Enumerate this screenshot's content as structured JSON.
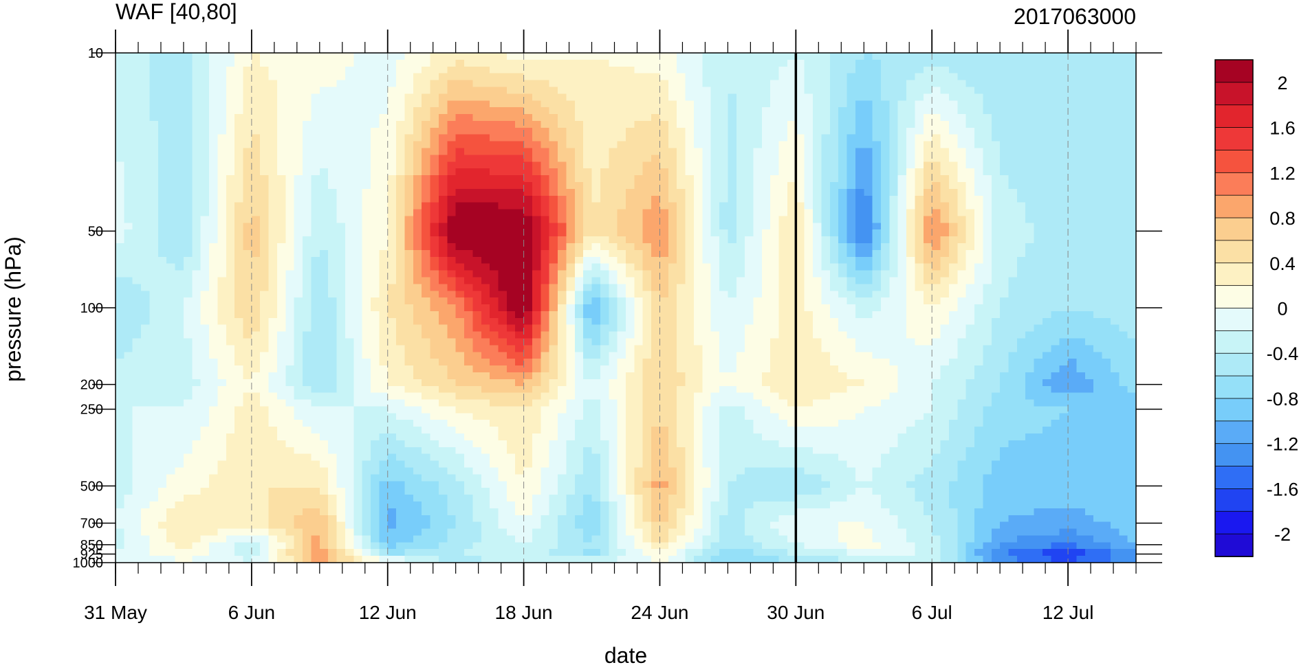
{
  "chart_data": {
    "type": "heatmap",
    "title_left": "WAF [40,80]",
    "title_right": "2017063000",
    "xlabel": "date",
    "ylabel": "pressure (hPa)",
    "x_ticks": [
      {
        "date": "2017-05-31",
        "label": "31 May"
      },
      {
        "date": "2017-06-06",
        "label": "6 Jun"
      },
      {
        "date": "2017-06-12",
        "label": "12 Jun"
      },
      {
        "date": "2017-06-18",
        "label": "18 Jun"
      },
      {
        "date": "2017-06-24",
        "label": "24 Jun"
      },
      {
        "date": "2017-06-30",
        "label": "30 Jun"
      },
      {
        "date": "2017-07-06",
        "label": "6 Jul"
      },
      {
        "date": "2017-07-12",
        "label": "12 Jul"
      }
    ],
    "xlim": [
      "2017-05-31",
      "2017-07-15"
    ],
    "y_scale": "log",
    "y_reversed": true,
    "ylim": [
      1000,
      10
    ],
    "y_ticks": [
      10,
      50,
      100,
      200,
      250,
      500,
      700,
      850,
      925,
      1000
    ],
    "y_tick_labels": [
      "10",
      "50",
      "100",
      "200",
      "250",
      "500",
      "700",
      "850",
      "925",
      "1000"
    ],
    "forecast_start_marker": "2017-06-30",
    "colorbar": {
      "levels": [
        -2.2,
        -2,
        -1.8,
        -1.6,
        -1.4,
        -1.2,
        -1,
        -0.8,
        -0.6,
        -0.4,
        -0.2,
        0,
        0.2,
        0.4,
        0.6,
        0.8,
        1,
        1.2,
        1.4,
        1.6,
        1.8,
        2,
        2.2
      ],
      "labels": [
        "2",
        "1.6",
        "1.2",
        "0.8",
        "0.4",
        "0",
        "-0.4",
        "-0.8",
        "-1.2",
        "-1.6",
        "-2"
      ],
      "label_values": [
        2,
        1.6,
        1.2,
        0.8,
        0.4,
        0,
        -0.4,
        -0.8,
        -1.2,
        -1.6,
        -2
      ],
      "colors": [
        "#1f0bd6",
        "#1a18f0",
        "#2044f2",
        "#2f6ef5",
        "#4493f2",
        "#5aabf7",
        "#78cdfa",
        "#95e0f8",
        "#aeeaf7",
        "#c8f4f7",
        "#e4fafb",
        "#fdfde5",
        "#fdf1c3",
        "#fbe0a5",
        "#fbce8f",
        "#fba66c",
        "#fb7d59",
        "#f5533e",
        "#ee3838",
        "#e2252d",
        "#c8132a",
        "#a60323"
      ]
    },
    "pressure_grid": [
      1000,
      925,
      850,
      700,
      500,
      250,
      200,
      100,
      50,
      10
    ],
    "day_offsets_from_31_May": [
      0,
      3,
      6,
      9,
      12,
      15,
      18,
      21,
      24,
      27,
      30,
      33,
      36,
      39,
      42,
      45
    ],
    "values": [
      [
        -0.1,
        -0.1,
        -0.2,
        0.8,
        0.2,
        -0.6,
        -0.2,
        -0.2,
        0.0,
        -0.8,
        -0.6,
        -0.4,
        -0.2,
        -1.2,
        -1.6,
        -1.2
      ],
      [
        -0.2,
        0.2,
        -0.3,
        1.0,
        -0.6,
        -0.4,
        -0.2,
        -0.7,
        0.2,
        -0.8,
        -0.4,
        -0.2,
        -0.2,
        -1.4,
        -1.8,
        -1.2
      ],
      [
        -0.3,
        0.3,
        -0.4,
        0.9,
        -0.9,
        -0.5,
        -0.2,
        -0.6,
        0.4,
        -0.6,
        -0.2,
        0.1,
        -0.3,
        -1.2,
        -1.4,
        -1.0
      ],
      [
        -0.2,
        0.4,
        0.3,
        0.8,
        -1.1,
        -0.6,
        0.0,
        -0.8,
        0.7,
        -0.5,
        0.0,
        0.0,
        -0.4,
        -1.0,
        -1.1,
        -0.9
      ],
      [
        -0.3,
        0.1,
        0.4,
        0.4,
        -0.9,
        -0.5,
        0.2,
        -0.6,
        0.9,
        -0.4,
        -0.6,
        -0.2,
        -0.5,
        -0.9,
        -0.9,
        -0.8
      ],
      [
        -0.2,
        -0.2,
        0.3,
        -0.2,
        -0.2,
        0.2,
        0.4,
        -0.3,
        0.6,
        -0.3,
        0.2,
        0.0,
        -0.2,
        -0.7,
        -0.8,
        -0.9
      ],
      [
        -0.3,
        -0.3,
        0.2,
        -0.6,
        0.2,
        0.6,
        0.8,
        -0.2,
        0.6,
        0.0,
        0.4,
        0.2,
        -0.2,
        -0.6,
        -1.2,
        -0.7
      ],
      [
        -0.6,
        -0.2,
        0.6,
        -0.6,
        0.4,
        1.0,
        2.3,
        -1.1,
        0.6,
        -0.2,
        0.3,
        -0.3,
        0.2,
        -0.4,
        -0.6,
        -0.5
      ],
      [
        -0.1,
        -0.6,
        0.7,
        -0.4,
        0.2,
        2.3,
        2.3,
        0.4,
        1.0,
        -0.5,
        0.4,
        -1.5,
        1.1,
        -0.3,
        -0.5,
        -0.4
      ],
      [
        -0.3,
        -0.5,
        0.2,
        0.1,
        -0.1,
        0.3,
        0.1,
        0.2,
        0.1,
        -0.4,
        -0.2,
        -0.6,
        -0.5,
        -0.6,
        -0.6,
        -0.4
      ]
    ]
  }
}
